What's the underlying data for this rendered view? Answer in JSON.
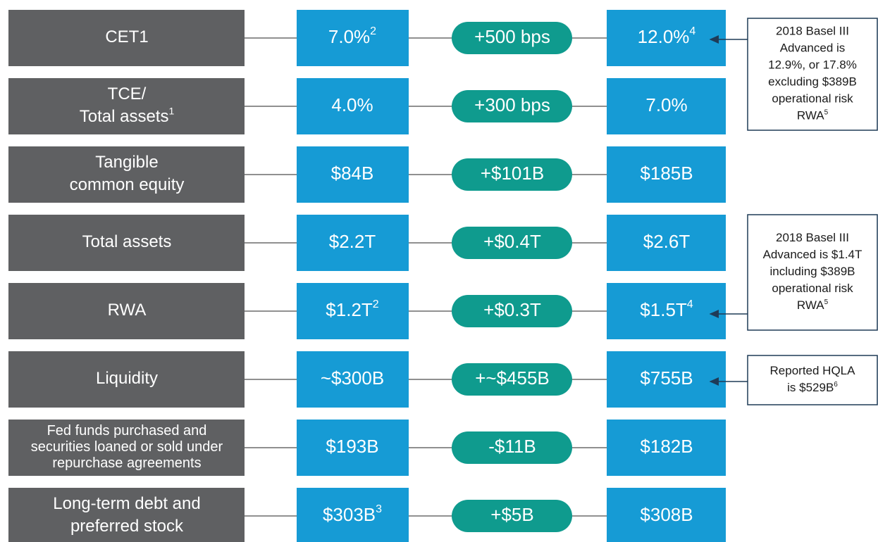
{
  "rows": [
    {
      "label": [
        "CET1"
      ],
      "before": "7.0%",
      "before_sup": "2",
      "change": "+500 bps",
      "after": "12.0%",
      "after_sup": "4"
    },
    {
      "label": [
        "TCE/",
        "Total assets"
      ],
      "label_sup": "1",
      "before": "4.0%",
      "change": "+300 bps",
      "after": "7.0%"
    },
    {
      "label": [
        "Tangible",
        "common equity"
      ],
      "before": "$84B",
      "change": "+$101B",
      "after": "$185B"
    },
    {
      "label": [
        "Total assets"
      ],
      "before": "$2.2T",
      "change": "+$0.4T",
      "after": "$2.6T"
    },
    {
      "label": [
        "RWA"
      ],
      "before": "$1.2T",
      "before_sup": "2",
      "change": "+$0.3T",
      "after": "$1.5T",
      "after_sup": "4"
    },
    {
      "label": [
        "Liquidity"
      ],
      "before": "~$300B",
      "change": "+~$455B",
      "after": "$755B"
    },
    {
      "label": [
        "Fed funds purchased and",
        "securities loaned or sold under",
        "repurchase agreements"
      ],
      "before": "$193B",
      "change": "-$11B",
      "after": "$182B"
    },
    {
      "label": [
        "Long-term debt and",
        "preferred stock"
      ],
      "before": "$303B",
      "before_sup": "3",
      "change": "+$5B",
      "after": "$308B"
    }
  ],
  "notes": [
    {
      "lines": [
        "2018 Basel III",
        "Advanced is",
        "12.9%, or 17.8%",
        "excluding $389B",
        "operational risk",
        "RWA"
      ],
      "sup": "5"
    },
    {
      "lines": [
        "2018 Basel III",
        "Advanced is $1.4T",
        "including $389B",
        "operational risk",
        "RWA"
      ],
      "sup": "5"
    },
    {
      "lines": [
        "Reported HQLA",
        "is $529B"
      ],
      "sup": "6"
    }
  ]
}
